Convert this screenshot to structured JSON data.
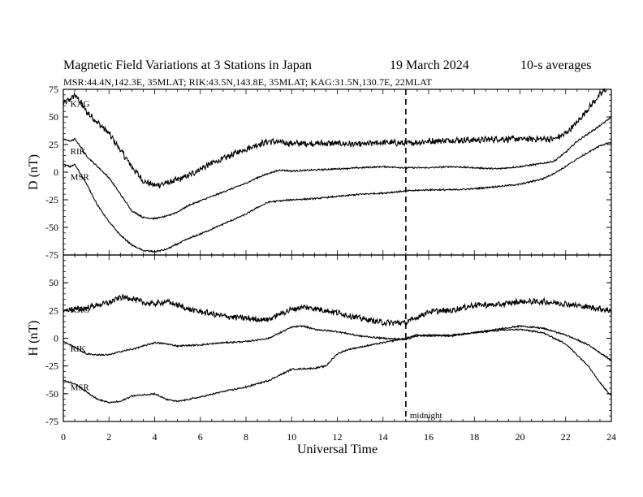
{
  "title": {
    "main": "Magnetic Field Variations at 3 Stations in Japan",
    "date": "19 March   2024",
    "averaging": "10-s averages"
  },
  "subtitle": "MSR:44.4N,142.3E, 35MLAT;  RIK:43.5N,143.8E, 35MLAT;  KAG:31.5N,130.7E, 22MLAT",
  "colors": {
    "line": "#000000",
    "axis": "#000000",
    "background": "#ffffff"
  },
  "chart_data": {
    "type": "line",
    "xlabel": "Universal Time",
    "xlim": [
      0,
      24
    ],
    "xticks": [
      0,
      2,
      4,
      6,
      8,
      10,
      12,
      14,
      16,
      18,
      20,
      22,
      24
    ],
    "grid": false,
    "marker": {
      "x": 15,
      "label": "midnight",
      "style": "dashed"
    },
    "panels": [
      {
        "ylabel": "D (nT)",
        "ylim": [
          -75,
          75
        ],
        "yticks": [
          -75,
          -50,
          -25,
          0,
          25,
          50,
          75
        ],
        "series": [
          {
            "name": "KAG",
            "noise": 2.5,
            "points": [
              [
                0,
                62
              ],
              [
                0.3,
                66
              ],
              [
                0.5,
                70
              ],
              [
                0.8,
                62
              ],
              [
                1,
                55
              ],
              [
                1.5,
                45
              ],
              [
                2,
                35
              ],
              [
                2.5,
                20
              ],
              [
                3,
                5
              ],
              [
                3.5,
                -8
              ],
              [
                4,
                -12
              ],
              [
                4.5,
                -10
              ],
              [
                5,
                -7
              ],
              [
                5.5,
                -3
              ],
              [
                6,
                3
              ],
              [
                6.5,
                8
              ],
              [
                7,
                12
              ],
              [
                7.5,
                17
              ],
              [
                8,
                21
              ],
              [
                8.5,
                25
              ],
              [
                9,
                28
              ],
              [
                10,
                26
              ],
              [
                11,
                26
              ],
              [
                12,
                26
              ],
              [
                13,
                25
              ],
              [
                14,
                27
              ],
              [
                15,
                26
              ],
              [
                16,
                28
              ],
              [
                17,
                29
              ],
              [
                18,
                29
              ],
              [
                19,
                30
              ],
              [
                20,
                30
              ],
              [
                21,
                30
              ],
              [
                21.5,
                30
              ],
              [
                22,
                35
              ],
              [
                22.5,
                45
              ],
              [
                23,
                58
              ],
              [
                23.5,
                70
              ],
              [
                23.9,
                78
              ],
              [
                24,
                76
              ]
            ]
          },
          {
            "name": "RIK",
            "noise": 0.6,
            "points": [
              [
                0,
                30
              ],
              [
                0.3,
                28
              ],
              [
                0.5,
                30
              ],
              [
                0.8,
                22
              ],
              [
                1,
                15
              ],
              [
                1.5,
                5
              ],
              [
                2,
                -5
              ],
              [
                2.5,
                -20
              ],
              [
                3,
                -35
              ],
              [
                3.5,
                -41
              ],
              [
                4,
                -42
              ],
              [
                4.5,
                -40
              ],
              [
                5,
                -36
              ],
              [
                5.5,
                -30
              ],
              [
                6,
                -26
              ],
              [
                7,
                -18
              ],
              [
                8,
                -10
              ],
              [
                8.5,
                -5
              ],
              [
                9,
                -1
              ],
              [
                9.5,
                2
              ],
              [
                10,
                1
              ],
              [
                11,
                2
              ],
              [
                12,
                3
              ],
              [
                13,
                4
              ],
              [
                14,
                5
              ],
              [
                15,
                4
              ],
              [
                16,
                4
              ],
              [
                17,
                5
              ],
              [
                18,
                4
              ],
              [
                19,
                3
              ],
              [
                20,
                5
              ],
              [
                21,
                8
              ],
              [
                21.5,
                10
              ],
              [
                22,
                18
              ],
              [
                22.5,
                28
              ],
              [
                23,
                35
              ],
              [
                23.5,
                42
              ],
              [
                24,
                50
              ]
            ]
          },
          {
            "name": "MSR",
            "noise": 0.6,
            "points": [
              [
                0,
                7
              ],
              [
                0.3,
                5
              ],
              [
                0.5,
                7
              ],
              [
                0.8,
                -3
              ],
              [
                1,
                -10
              ],
              [
                1.5,
                -30
              ],
              [
                2,
                -45
              ],
              [
                2.5,
                -57
              ],
              [
                3,
                -66
              ],
              [
                3.5,
                -71
              ],
              [
                4,
                -72
              ],
              [
                4.5,
                -70
              ],
              [
                5,
                -65
              ],
              [
                5.5,
                -60
              ],
              [
                6,
                -56
              ],
              [
                7,
                -47
              ],
              [
                8,
                -38
              ],
              [
                8.5,
                -32
              ],
              [
                9,
                -27
              ],
              [
                10,
                -25
              ],
              [
                11,
                -24
              ],
              [
                12,
                -22
              ],
              [
                13,
                -20
              ],
              [
                14,
                -19
              ],
              [
                15,
                -17
              ],
              [
                16,
                -16
              ],
              [
                17,
                -16
              ],
              [
                18,
                -15
              ],
              [
                19,
                -13
              ],
              [
                20,
                -11
              ],
              [
                21,
                -6
              ],
              [
                21.5,
                -1
              ],
              [
                22,
                5
              ],
              [
                22.5,
                12
              ],
              [
                23,
                18
              ],
              [
                23.5,
                24
              ],
              [
                24,
                27
              ]
            ]
          }
        ],
        "labels": [
          {
            "text": "KAG",
            "x": 0.2,
            "y": 62
          },
          {
            "text": "RIK",
            "x": 0.2,
            "y": 19
          },
          {
            "text": "MSR",
            "x": 0.2,
            "y": -4
          }
        ]
      },
      {
        "ylabel": "H (nT)",
        "ylim": [
          -75,
          75
        ],
        "yticks": [
          -75,
          -50,
          -25,
          0,
          25,
          50
        ],
        "series": [
          {
            "name": "KAG",
            "noise": 2.3,
            "points": [
              [
                0,
                25
              ],
              [
                0.5,
                26
              ],
              [
                1,
                27
              ],
              [
                1.5,
                30
              ],
              [
                2,
                32
              ],
              [
                2.5,
                37
              ],
              [
                3,
                36
              ],
              [
                3.5,
                32
              ],
              [
                4,
                31
              ],
              [
                4.5,
                33
              ],
              [
                5,
                30
              ],
              [
                5.5,
                26
              ],
              [
                6,
                24
              ],
              [
                7,
                20
              ],
              [
                8,
                18
              ],
              [
                8.5,
                17
              ],
              [
                9,
                17
              ],
              [
                9.5,
                22
              ],
              [
                10,
                26
              ],
              [
                10.5,
                28
              ],
              [
                11,
                27
              ],
              [
                12,
                23
              ],
              [
                13,
                18
              ],
              [
                14,
                14
              ],
              [
                15,
                14
              ],
              [
                15.5,
                19
              ],
              [
                16,
                24
              ],
              [
                17,
                25
              ],
              [
                18,
                30
              ],
              [
                19,
                30
              ],
              [
                20,
                33
              ],
              [
                21,
                33
              ],
              [
                22,
                31
              ],
              [
                23,
                28
              ],
              [
                24,
                25
              ]
            ]
          },
          {
            "name": "RIK",
            "noise": 0.6,
            "points": [
              [
                0,
                -3
              ],
              [
                0.5,
                -8
              ],
              [
                1,
                -14
              ],
              [
                1.5,
                -15
              ],
              [
                2,
                -15
              ],
              [
                2.5,
                -12
              ],
              [
                3,
                -10
              ],
              [
                3.5,
                -7
              ],
              [
                4,
                -4
              ],
              [
                4.5,
                -5
              ],
              [
                5,
                -7
              ],
              [
                6,
                -6
              ],
              [
                7,
                -4
              ],
              [
                8,
                -3
              ],
              [
                9,
                0
              ],
              [
                9.5,
                5
              ],
              [
                10,
                10
              ],
              [
                10.5,
                11
              ],
              [
                11,
                8
              ],
              [
                12,
                6
              ],
              [
                13,
                2
              ],
              [
                14,
                0
              ],
              [
                15,
                -1
              ],
              [
                15.5,
                2
              ],
              [
                16,
                3
              ],
              [
                17,
                2
              ],
              [
                18,
                5
              ],
              [
                19,
                8
              ],
              [
                20,
                11
              ],
              [
                21,
                9
              ],
              [
                22,
                3
              ],
              [
                23,
                -6
              ],
              [
                24,
                -20
              ]
            ]
          },
          {
            "name": "MSR",
            "noise": 0.6,
            "points": [
              [
                0,
                -38
              ],
              [
                0.5,
                -41
              ],
              [
                1,
                -48
              ],
              [
                1.5,
                -55
              ],
              [
                2,
                -58
              ],
              [
                2.5,
                -57
              ],
              [
                3,
                -52
              ],
              [
                4,
                -50
              ],
              [
                4.5,
                -55
              ],
              [
                5,
                -57
              ],
              [
                6,
                -53
              ],
              [
                7,
                -48
              ],
              [
                8,
                -44
              ],
              [
                9,
                -38
              ],
              [
                9.5,
                -33
              ],
              [
                10,
                -28
              ],
              [
                11,
                -27
              ],
              [
                11.5,
                -25
              ],
              [
                12,
                -14
              ],
              [
                12.5,
                -10
              ],
              [
                13,
                -8
              ],
              [
                14,
                -4
              ],
              [
                15,
                0
              ],
              [
                15.5,
                3
              ],
              [
                16,
                2
              ],
              [
                17,
                3
              ],
              [
                18,
                5
              ],
              [
                19,
                7
              ],
              [
                20,
                8
              ],
              [
                21,
                5
              ],
              [
                22,
                -5
              ],
              [
                23,
                -25
              ],
              [
                23.5,
                -40
              ],
              [
                24,
                -52
              ]
            ]
          }
        ],
        "labels": [
          {
            "text": "KAG",
            "x": 0.2,
            "y": 26
          },
          {
            "text": "RIK",
            "x": 0.2,
            "y": -9
          },
          {
            "text": "MSR",
            "x": 0.2,
            "y": -44
          }
        ]
      }
    ]
  }
}
